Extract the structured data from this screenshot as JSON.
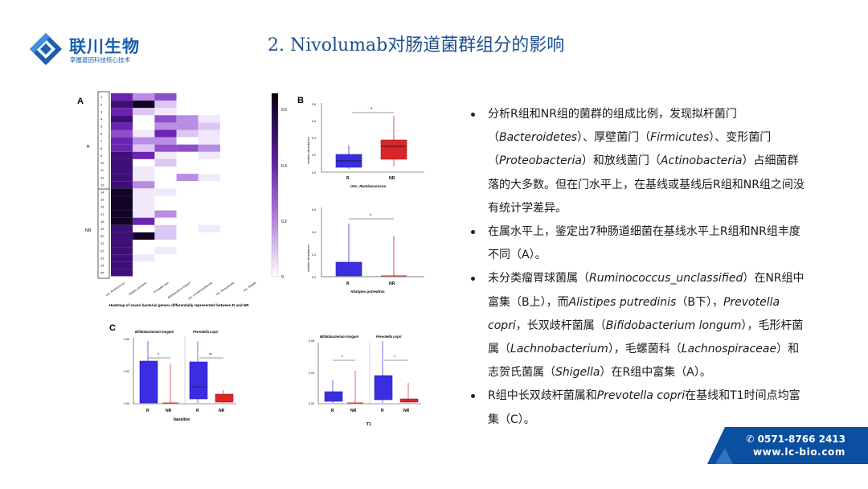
{
  "logo": {
    "name": "联川生物",
    "slogan": "掌握基因科技核心技术",
    "color": "#1b5fae"
  },
  "title": "2. Nivolumab对肠道菌群组分的影响",
  "figure": {
    "panel_a": {
      "letter": "A",
      "group_labels": [
        "R",
        "NR"
      ],
      "row_labels": [
        "1",
        "2",
        "3",
        "4",
        "5",
        "6",
        "7",
        "8",
        "9",
        "10",
        "11",
        "12",
        "13",
        "14",
        "15",
        "16",
        "17",
        "18",
        "19",
        "20",
        "21",
        "22",
        "23",
        "24",
        "25"
      ],
      "col_labels": [
        "Unc_Ruminococcus",
        "Alistipes putredinis",
        "Prevotella copri",
        "Bifidobacterium longum",
        "Unc_Christensenellaceae",
        "Unc_Parasutterella",
        "Unc_Shigella"
      ],
      "scale_ticks": [
        "0.6",
        "0.4",
        "0.2",
        "0"
      ],
      "caption": "Heatmap of seven bacterial genera differentially represented between R and NR"
    },
    "panel_b": {
      "letter": "B",
      "ylabel": "relative abundance",
      "plots": [
        {
          "title": "Unc_Ruminococcus",
          "ticks": [
            "0.8",
            "0.6",
            "0.4",
            "0.2",
            "0.0"
          ],
          "groups": [
            "R",
            "NR"
          ],
          "sig": "*"
        },
        {
          "title": "Alistipes putredinis",
          "ticks": [
            "0.6",
            "0.4",
            "0.2",
            "0.0"
          ],
          "groups": [
            "R",
            "NR"
          ],
          "sig": "*"
        }
      ]
    },
    "panel_c": {
      "letter": "C",
      "left": {
        "titles": [
          "Bifidobacterium longum",
          "Prevotella copri"
        ],
        "ticks": [
          "0.04",
          "0.02",
          "0.00"
        ],
        "groups": [
          "R",
          "NR",
          "R",
          "NR"
        ],
        "sigs": [
          "*",
          "**"
        ],
        "label": "baseline"
      },
      "right": {
        "titles": [
          "Bifidobacterium longum",
          "Prevotella copri"
        ],
        "ticks": [
          "0.08",
          "0.04",
          "0.00"
        ],
        "groups": [
          "R",
          "NR",
          "R",
          "NR"
        ],
        "sigs": [
          "*",
          "*"
        ],
        "label": "T1"
      }
    }
  },
  "bullets": [
    "分析R组和NR组的菌群的组成比例，发现拟杆菌门（Bacteroidetes）、厚壁菌门（Firmicutes）、变形菌门（Proteobacteria）和放线菌门（Actinobacteria）占细菌群落的大多数。但在门水平上，在基线或基线后R组和NR组之间没有统计学差异。",
    "在属水平上，鉴定出7种肠道细菌在基线水平上R组和NR组丰度不同（A）。",
    "未分类瘤胃球菌属（Ruminococcus_unclassified）在NR组中富集（B上），而Alistipes putredinis（B下），Prevotella copri，长双歧杆菌属（Bifidobacterium longum），毛形杆菌属（Lachnobacterium），毛螺菌科（Lachnospiraceae）和志贺氏菌属（Shigella）在R组中富集（A）。",
    "R组中长双歧杆菌属和Prevotella copri在基线和T1时间点均富集（C）。"
  ],
  "contact": {
    "phone": "✆ 0571-8766 2413",
    "website": "www.lc-bio.com"
  },
  "colors": {
    "title": "#1d4f8f",
    "brand": "#1b5fae",
    "r_box": "#3a2ee0",
    "nr_box": "#d8262b",
    "heat": "#7b2fbe",
    "banner": "#0b4fa0"
  }
}
